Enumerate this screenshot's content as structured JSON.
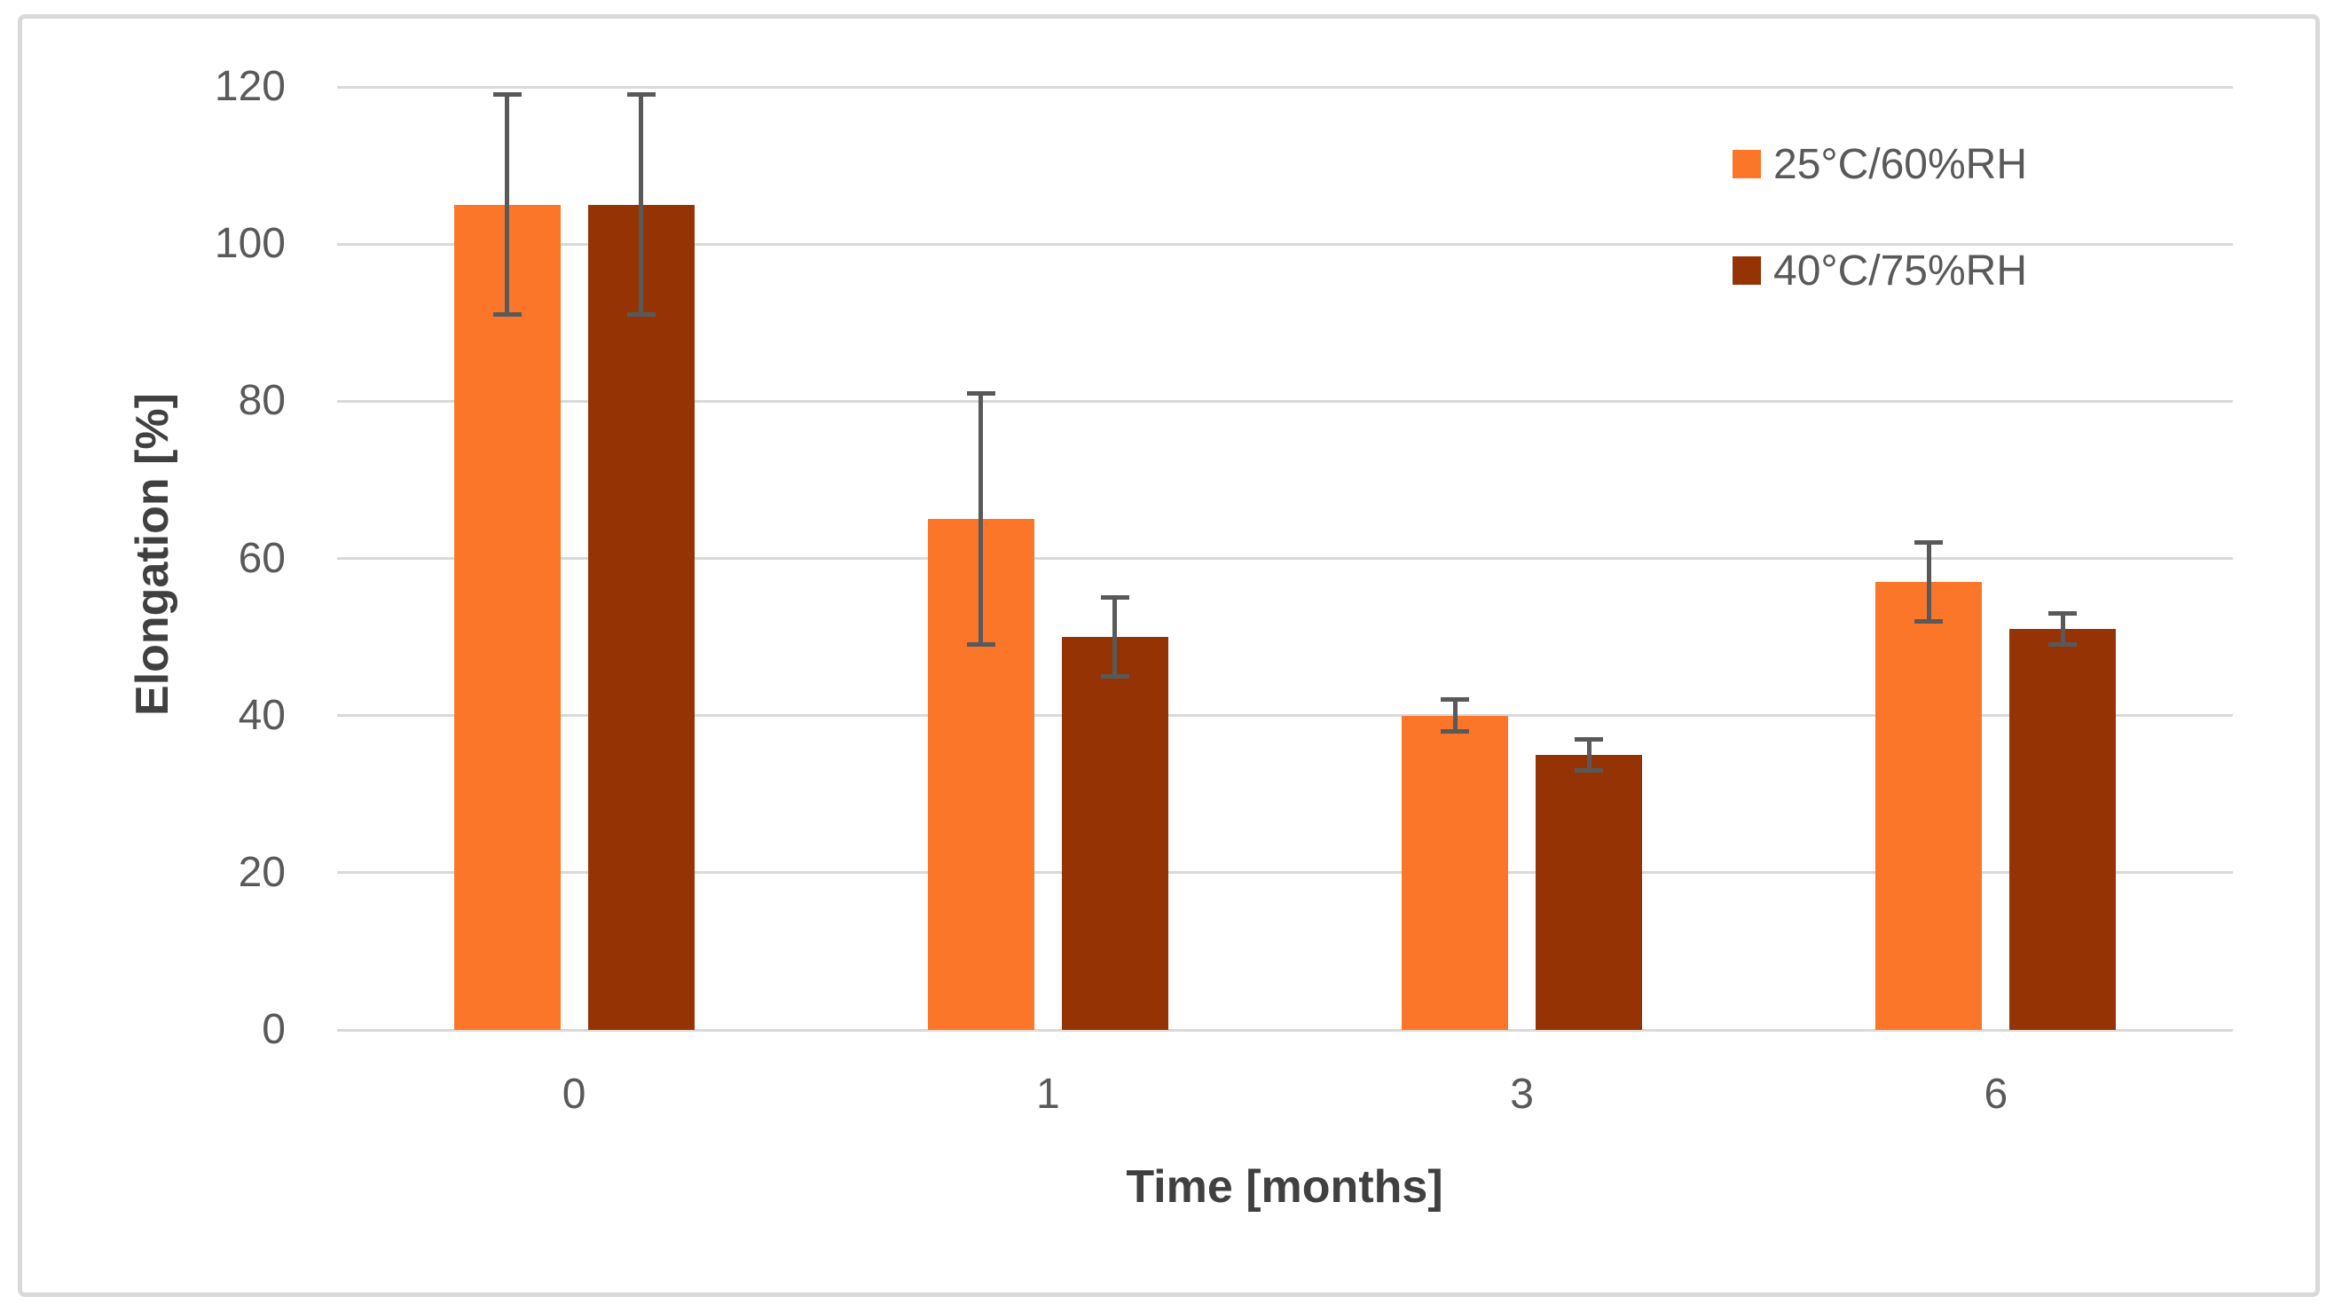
{
  "chart_data": {
    "type": "bar",
    "title": "",
    "categories": [
      "0",
      "1",
      "3",
      "6"
    ],
    "series": [
      {
        "name": "25°C/60%RH",
        "color": "#FC7629",
        "values": [
          105,
          65,
          40,
          57
        ],
        "error": [
          14,
          16,
          2,
          5
        ]
      },
      {
        "name": "40°C/75%RH",
        "color": "#963305",
        "values": [
          105,
          50,
          35,
          51
        ],
        "error": [
          14,
          5,
          2,
          2
        ]
      }
    ],
    "xlabel": "Time [months]",
    "ylabel": "Elongation [%]",
    "ylim": [
      0,
      120
    ],
    "yticks": [
      0,
      20,
      40,
      60,
      80,
      100,
      120
    ],
    "grid": true,
    "error_bars": true,
    "legend_position": "top-right"
  },
  "colors": {
    "gridline": "#D9D9D9",
    "frame_border": "#D9D9D9",
    "error_bar": "#595959",
    "tick_text": "#595959",
    "axis_title_text": "#404040",
    "background": "#FFFFFF"
  }
}
